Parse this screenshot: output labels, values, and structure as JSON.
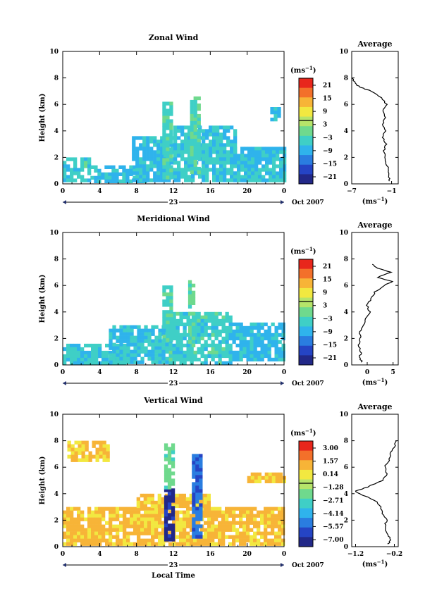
{
  "chart_data": [
    {
      "type": "heatmap",
      "title": "Zonal Wind",
      "ylabel": "Height (km)",
      "xlabel": "",
      "yticks": [
        "0",
        "2",
        "4",
        "6",
        "8",
        "10"
      ],
      "xticks": [
        "0",
        "4",
        "8",
        "12",
        "16",
        "20",
        "0"
      ],
      "ylim": [
        0,
        10
      ],
      "xlim": [
        0,
        24
      ],
      "date_labels": {
        "day": "23",
        "month": "Oct 2007"
      },
      "colorbar": {
        "unit_label": "(ms",
        "unit_exp": "−1",
        "unit_close": ")",
        "ticks": [
          "21",
          "15",
          "9",
          "3",
          "−3",
          "−9",
          "−15",
          "−21"
        ]
      },
      "echoes": [
        {
          "x0": 0.0,
          "x1": 3.0,
          "y0": 0.2,
          "y1": 2.0,
          "v": -4
        },
        {
          "x0": 3.0,
          "x1": 9.0,
          "y0": 0.2,
          "y1": 1.4,
          "v": -6
        },
        {
          "x0": 7.5,
          "x1": 12.0,
          "y0": 0.2,
          "y1": 3.6,
          "v": -7
        },
        {
          "x0": 12.0,
          "x1": 18.5,
          "y0": 0.2,
          "y1": 4.4,
          "v": -5
        },
        {
          "x0": 18.5,
          "x1": 24.0,
          "y0": 0.4,
          "y1": 2.8,
          "v": -6
        },
        {
          "x0": 10.8,
          "x1": 11.8,
          "y0": 0.6,
          "y1": 6.2,
          "v": -3
        },
        {
          "x0": 13.8,
          "x1": 14.8,
          "y0": 0.8,
          "y1": 6.6,
          "v": -2
        },
        {
          "x0": 22.5,
          "x1": 23.5,
          "y0": 5.0,
          "y1": 5.8,
          "v": -7
        }
      ],
      "average": {
        "xticks": [
          "−7",
          "−1"
        ],
        "xlim": [
          -7,
          0
        ],
        "title": "Average",
        "heights": [
          0.2,
          0.6,
          1.0,
          1.5,
          2.0,
          2.5,
          3.0,
          3.5,
          4.0,
          4.5,
          5.0,
          5.5,
          6.0,
          6.5,
          7.0,
          7.3,
          7.6,
          8.0
        ],
        "values": [
          -1.2,
          -1.5,
          -1.4,
          -1.8,
          -2.0,
          -2.2,
          -1.8,
          -2.3,
          -2.0,
          -2.4,
          -1.9,
          -2.3,
          -1.8,
          -2.5,
          -4.0,
          -5.8,
          -6.5,
          -7.0
        ]
      }
    },
    {
      "type": "heatmap",
      "title": "Meridional Wind",
      "ylabel": "Height (km)",
      "xlabel": "",
      "yticks": [
        "0",
        "2",
        "4",
        "6",
        "8",
        "10"
      ],
      "xticks": [
        "0",
        "4",
        "8",
        "12",
        "16",
        "20",
        "0"
      ],
      "ylim": [
        0,
        10
      ],
      "xlim": [
        0,
        24
      ],
      "date_labels": {
        "day": "23",
        "month": "Oct 2007"
      },
      "colorbar": {
        "unit_label": "(ms",
        "unit_exp": "−1",
        "unit_close": ")",
        "ticks": [
          "21",
          "15",
          "9",
          "3",
          "−3",
          "−9",
          "−15",
          "−21"
        ]
      },
      "echoes": [
        {
          "x0": 0.0,
          "x1": 7.0,
          "y0": 0.1,
          "y1": 1.6,
          "v": -5
        },
        {
          "x0": 5.0,
          "x1": 11.5,
          "y0": 0.2,
          "y1": 3.0,
          "v": -6
        },
        {
          "x0": 11.5,
          "x1": 18.0,
          "y0": 0.2,
          "y1": 4.0,
          "v": -4
        },
        {
          "x0": 18.0,
          "x1": 24.0,
          "y0": 0.3,
          "y1": 3.2,
          "v": -7
        },
        {
          "x0": 10.8,
          "x1": 11.6,
          "y0": 2.0,
          "y1": 6.0,
          "v": -3
        },
        {
          "x0": 13.6,
          "x1": 14.2,
          "y0": 1.5,
          "y1": 6.4,
          "v": -2
        }
      ],
      "average": {
        "xticks": [
          "0",
          "5"
        ],
        "xlim": [
          -3,
          6
        ],
        "title": "Average",
        "heights": [
          0.2,
          0.6,
          1.0,
          1.5,
          2.0,
          2.5,
          3.0,
          3.5,
          4.0,
          4.5,
          5.0,
          5.5,
          6.0,
          6.3,
          6.6,
          7.0,
          7.3,
          7.6
        ],
        "values": [
          -1.0,
          -1.5,
          -1.2,
          -1.6,
          -1.3,
          -1.4,
          -0.8,
          -0.2,
          0.5,
          0.0,
          0.8,
          1.5,
          3.2,
          5.0,
          2.0,
          4.5,
          2.0,
          1.0
        ]
      }
    },
    {
      "type": "heatmap",
      "title": "Vertical Wind",
      "ylabel": "Height (km)",
      "xlabel": "Local Time",
      "yticks": [
        "0",
        "2",
        "4",
        "6",
        "8",
        "10"
      ],
      "xticks": [
        "0",
        "4",
        "8",
        "12",
        "16",
        "20",
        "0"
      ],
      "ylim": [
        0,
        10
      ],
      "xlim": [
        0,
        24
      ],
      "date_labels": {
        "day": "23",
        "month": "Oct 2007"
      },
      "colorbar": {
        "unit_label": "(ms",
        "unit_exp": "−1",
        "unit_close": ")",
        "ticks": [
          "3.00",
          "1.57",
          "0.14",
          "−1.28",
          "−2.71",
          "−4.14",
          "−5.57",
          "−7.00"
        ]
      },
      "echoes": [
        {
          "x0": 0.0,
          "x1": 24.0,
          "y0": 0.1,
          "y1": 3.0,
          "v": 0.5
        },
        {
          "x0": 0.5,
          "x1": 5.0,
          "y0": 6.5,
          "y1": 8.0,
          "v": 0.3
        },
        {
          "x0": 8.0,
          "x1": 16.0,
          "y0": 3.0,
          "y1": 4.0,
          "v": 0.4
        },
        {
          "x0": 20.0,
          "x1": 24.0,
          "y0": 5.0,
          "y1": 5.6,
          "v": 0.4
        },
        {
          "x0": 11.0,
          "x1": 11.8,
          "y0": 0.5,
          "y1": 4.4,
          "v": -6.5
        },
        {
          "x0": 14.0,
          "x1": 14.8,
          "y0": 0.8,
          "y1": 7.0,
          "v": -5.0
        },
        {
          "x0": 11.0,
          "x1": 11.8,
          "y0": 4.4,
          "y1": 7.8,
          "v": -2.0
        }
      ],
      "average": {
        "xticks": [
          "−1.2",
          "−0.2"
        ],
        "xlim": [
          -1.3,
          -0.1
        ],
        "title": "Average",
        "heights": [
          0.2,
          0.6,
          1.0,
          1.5,
          2.0,
          2.5,
          3.0,
          3.5,
          4.0,
          4.2,
          4.5,
          5.0,
          5.5,
          6.0,
          6.5,
          7.0,
          7.5,
          8.0
        ],
        "values": [
          -0.35,
          -0.3,
          -0.4,
          -0.45,
          -0.4,
          -0.5,
          -0.55,
          -0.7,
          -1.1,
          -1.2,
          -0.9,
          -0.5,
          -0.4,
          -0.45,
          -0.35,
          -0.3,
          -0.2,
          -0.15
        ]
      }
    }
  ]
}
